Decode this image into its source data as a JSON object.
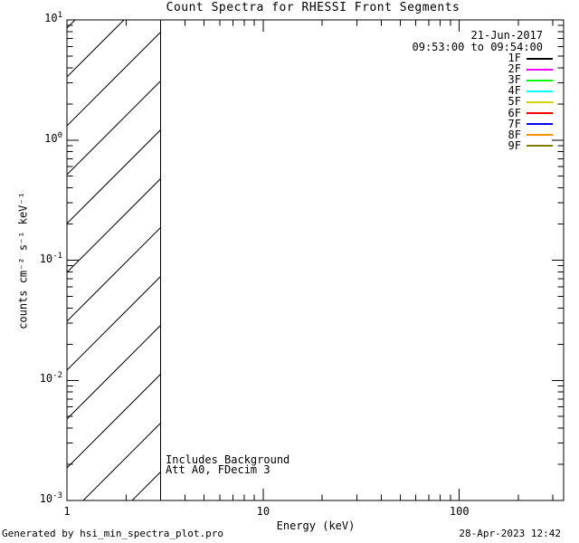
{
  "figure": {
    "background_color": "#ffffff",
    "foreground_color": "#000000",
    "date_label": "21-Jun-2017",
    "time_range_label": "09:53:00 to 09:54:00",
    "footer_left": "Generated by hsi_min_spectra_plot.pro",
    "footer_right": "28-Apr-2023 12:42"
  },
  "chart_data": {
    "type": "line",
    "title": "Count Spectra for RHESSI Front Segments",
    "xlabel": "Energy (keV)",
    "ylabel": "counts cm⁻² s⁻¹ keV⁻¹",
    "xscale": "log",
    "yscale": "log",
    "xlim": [
      1,
      340
    ],
    "ylim": [
      0.001,
      10
    ],
    "grid": false,
    "x_major_ticks": [
      {
        "value": 1,
        "label": "1"
      },
      {
        "value": 10,
        "label": "10"
      },
      {
        "value": 100,
        "label": "100"
      }
    ],
    "x_minor_ticks": [
      2,
      3,
      4,
      5,
      6,
      7,
      8,
      9,
      20,
      30,
      40,
      50,
      60,
      70,
      80,
      90,
      200,
      300
    ],
    "y_major_ticks": [
      {
        "value": 10,
        "base": "10",
        "exp": "1"
      },
      {
        "value": 1,
        "base": "10",
        "exp": "0"
      },
      {
        "value": 0.1,
        "base": "10",
        "exp": "-1"
      },
      {
        "value": 0.01,
        "base": "10",
        "exp": "-2"
      },
      {
        "value": 0.001,
        "base": "10",
        "exp": "-3"
      }
    ],
    "y_minor_ticks": [
      0.002,
      0.003,
      0.004,
      0.005,
      0.006,
      0.007,
      0.008,
      0.009,
      0.02,
      0.03,
      0.04,
      0.05,
      0.06,
      0.07,
      0.08,
      0.09,
      0.2,
      0.3,
      0.4,
      0.5,
      0.6,
      0.7,
      0.8,
      0.9,
      2,
      3,
      4,
      5,
      6,
      7,
      8,
      9
    ],
    "series": [],
    "hatched_region": {
      "x_start": 1,
      "x_end": 3,
      "pattern": "diagonal-45deg"
    },
    "annotations": [
      "Includes Background",
      "Att A0, FDecim 3"
    ],
    "legend": {
      "position": "upper-right",
      "entries": [
        {
          "label": "1F",
          "color": "#000000"
        },
        {
          "label": "2F",
          "color": "#ff00ff"
        },
        {
          "label": "3F",
          "color": "#00ff00"
        },
        {
          "label": "4F",
          "color": "#00ffff"
        },
        {
          "label": "5F",
          "color": "#d4d400"
        },
        {
          "label": "6F",
          "color": "#ff0000"
        },
        {
          "label": "7F",
          "color": "#0000ee"
        },
        {
          "label": "8F",
          "color": "#ff9000"
        },
        {
          "label": "9F",
          "color": "#847c00"
        }
      ]
    }
  }
}
